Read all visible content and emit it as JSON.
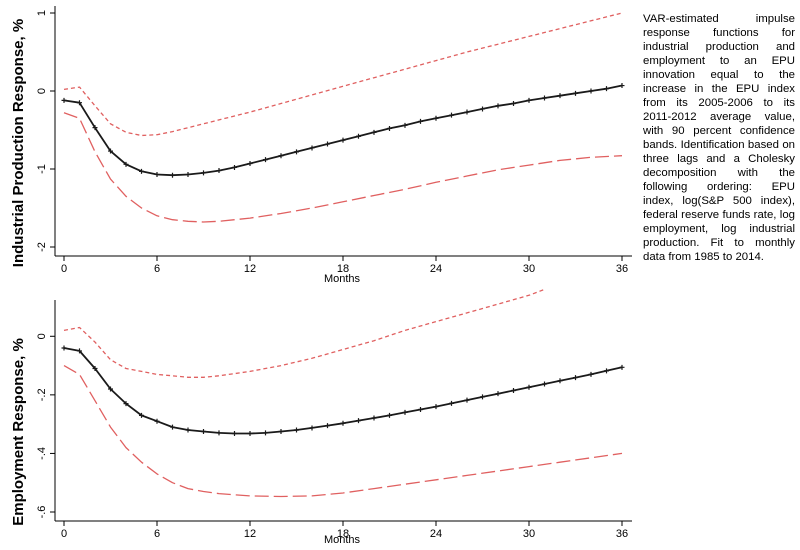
{
  "caption": "VAR-estimated impulse response functions for industrial production and employment to an EPU innovation equal to the increase in the EPU index from its 2005-2006 to its 2011-2012 average value, with 90 percent confidence bands. Identification based on three lags and a Cholesky decomposition with the following ordering: EPU index, log(S&P 500 index), federal reserve funds rate, log employment, log industrial production. Fit to monthly data from 1985 to 2014.",
  "colors": {
    "estimate": "#1a1a1a",
    "band": "#e06060"
  },
  "chart_data": [
    {
      "type": "line",
      "ylabel": "Industrial Production Response, %",
      "xlabel": "Months",
      "xlim": [
        0,
        36
      ],
      "ylim": [
        -2,
        1
      ],
      "xticks": [
        0,
        6,
        12,
        18,
        24,
        30,
        36
      ],
      "xtick_labels": [
        "0",
        "6",
        "12",
        "18",
        "24",
        "30",
        "36"
      ],
      "yticks": [
        1,
        0,
        -1,
        -2
      ],
      "ytick_labels": [
        "1",
        "0",
        "-1",
        "-2"
      ],
      "grid": false,
      "series": [
        {
          "role": "estimate",
          "style": "solid-markers",
          "x": [
            0,
            1,
            2,
            3,
            4,
            5,
            6,
            7,
            8,
            9,
            10,
            11,
            12,
            13,
            14,
            15,
            16,
            17,
            18,
            19,
            20,
            21,
            22,
            23,
            24,
            25,
            26,
            27,
            28,
            29,
            30,
            31,
            32,
            33,
            34,
            35,
            36
          ],
          "values": [
            -0.12,
            -0.15,
            -0.47,
            -0.77,
            -0.94,
            -1.03,
            -1.07,
            -1.08,
            -1.07,
            -1.05,
            -1.02,
            -0.98,
            -0.93,
            -0.88,
            -0.83,
            -0.78,
            -0.73,
            -0.68,
            -0.63,
            -0.58,
            -0.53,
            -0.48,
            -0.44,
            -0.39,
            -0.35,
            -0.31,
            -0.27,
            -0.23,
            -0.19,
            -0.16,
            -0.12,
            -0.09,
            -0.06,
            -0.03,
            0.0,
            0.03,
            0.07
          ]
        },
        {
          "role": "upper",
          "style": "short-dash",
          "x": [
            0,
            1,
            2,
            3,
            4,
            5,
            6,
            7,
            8,
            10,
            12,
            14,
            16,
            18,
            20,
            22,
            24,
            26,
            28,
            30,
            32,
            34,
            36
          ],
          "values": [
            0.02,
            0.05,
            -0.19,
            -0.42,
            -0.53,
            -0.57,
            -0.56,
            -0.52,
            -0.47,
            -0.37,
            -0.27,
            -0.16,
            -0.05,
            0.06,
            0.17,
            0.28,
            0.39,
            0.5,
            0.6,
            0.7,
            0.8,
            0.9,
            1.0
          ]
        },
        {
          "role": "lower",
          "style": "long-dash",
          "x": [
            0,
            1,
            2,
            3,
            4,
            5,
            6,
            7,
            8,
            9,
            10,
            12,
            14,
            16,
            18,
            20,
            22,
            24,
            26,
            28,
            30,
            32,
            34,
            36
          ],
          "values": [
            -0.28,
            -0.35,
            -0.78,
            -1.13,
            -1.35,
            -1.5,
            -1.6,
            -1.65,
            -1.67,
            -1.68,
            -1.67,
            -1.63,
            -1.57,
            -1.5,
            -1.42,
            -1.34,
            -1.26,
            -1.17,
            -1.09,
            -1.01,
            -0.95,
            -0.89,
            -0.85,
            -0.83
          ]
        }
      ]
    },
    {
      "type": "line",
      "ylabel": "Employment Response, %",
      "xlabel": "Months",
      "xlim": [
        0,
        36
      ],
      "ylim": [
        -0.6,
        0.1
      ],
      "xticks": [
        0,
        6,
        12,
        18,
        24,
        30,
        36
      ],
      "xtick_labels": [
        "0",
        "6",
        "12",
        "18",
        "24",
        "30",
        "36"
      ],
      "yticks": [
        0,
        -0.2,
        -0.4,
        -0.6
      ],
      "ytick_labels": [
        "0",
        "-.2",
        "-.4",
        "-.6"
      ],
      "grid": false,
      "series": [
        {
          "role": "estimate",
          "style": "solid-markers",
          "x": [
            0,
            1,
            2,
            3,
            4,
            5,
            6,
            7,
            8,
            9,
            10,
            11,
            12,
            13,
            14,
            15,
            16,
            17,
            18,
            19,
            20,
            21,
            22,
            23,
            24,
            25,
            26,
            27,
            28,
            29,
            30,
            31,
            32,
            33,
            34,
            35,
            36
          ],
          "values": [
            -0.04,
            -0.05,
            -0.11,
            -0.18,
            -0.23,
            -0.27,
            -0.29,
            -0.31,
            -0.32,
            -0.325,
            -0.33,
            -0.332,
            -0.332,
            -0.33,
            -0.325,
            -0.32,
            -0.313,
            -0.305,
            -0.297,
            -0.288,
            -0.279,
            -0.27,
            -0.26,
            -0.25,
            -0.24,
            -0.229,
            -0.218,
            -0.207,
            -0.196,
            -0.185,
            -0.174,
            -0.163,
            -0.152,
            -0.141,
            -0.13,
            -0.118,
            -0.106
          ]
        },
        {
          "role": "upper",
          "style": "short-dash",
          "x": [
            0,
            1,
            2,
            3,
            4,
            5,
            6,
            7,
            8,
            9,
            10,
            12,
            14,
            16,
            18,
            20,
            22,
            24,
            26,
            28,
            30,
            31
          ],
          "values": [
            0.02,
            0.03,
            -0.02,
            -0.08,
            -0.11,
            -0.12,
            -0.13,
            -0.135,
            -0.14,
            -0.14,
            -0.135,
            -0.12,
            -0.1,
            -0.075,
            -0.045,
            -0.015,
            0.02,
            0.05,
            0.08,
            0.11,
            0.14,
            0.16
          ]
        },
        {
          "role": "lower",
          "style": "long-dash",
          "x": [
            0,
            1,
            2,
            3,
            4,
            5,
            6,
            7,
            8,
            9,
            10,
            12,
            14,
            16,
            18,
            20,
            22,
            24,
            26,
            28,
            30,
            32,
            34,
            36
          ],
          "values": [
            -0.1,
            -0.13,
            -0.22,
            -0.31,
            -0.38,
            -0.43,
            -0.47,
            -0.5,
            -0.52,
            -0.53,
            -0.537,
            -0.545,
            -0.547,
            -0.545,
            -0.535,
            -0.52,
            -0.505,
            -0.49,
            -0.475,
            -0.46,
            -0.445,
            -0.43,
            -0.415,
            -0.4
          ]
        }
      ]
    }
  ]
}
